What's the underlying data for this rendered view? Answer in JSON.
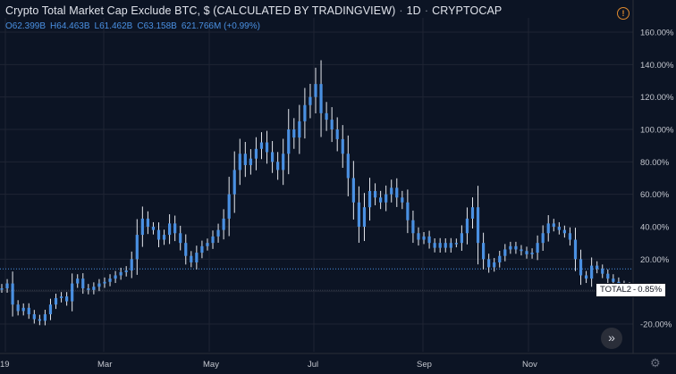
{
  "header": {
    "title": "Crypto Total Market Cap Exclude BTC, $ (CALCULATED BY TRADINGVIEW)",
    "interval": "1D",
    "exchange": "CRYPTOCAP",
    "separator": "·"
  },
  "ohlc": {
    "open": "O62.399B",
    "high": "H64.463B",
    "low": "L61.462B",
    "close": "C63.158B",
    "change": "621.766M (+0.99%)"
  },
  "price_tag": {
    "symbol": "TOTAL2",
    "separator": "-",
    "value": "0.85%"
  },
  "colors": {
    "background": "#0c1424",
    "grid": "#1e2433",
    "candle": "#4a90e2",
    "wick": "#e6e9ef",
    "ref_line": "#4a90e2"
  },
  "icons": {
    "alert": "alert-clock-icon",
    "scroll": "double-chevron-right-icon",
    "settings": "gear-icon"
  },
  "chart_data": {
    "type": "line",
    "title": "Crypto Total Market Cap Exclude BTC, $ (CALCULATED BY TRADINGVIEW)",
    "x_labels": [
      "19",
      "Mar",
      "May",
      "Jul",
      "Sep",
      "Nov"
    ],
    "y_ticks": [
      "160.00%",
      "140.00%",
      "120.00%",
      "100.00%",
      "80.00%",
      "60.00%",
      "40.00%",
      "20.00%",
      "0.00%",
      "-20.00%"
    ],
    "y_values": [
      160,
      140,
      120,
      100,
      80,
      60,
      40,
      20,
      0,
      -20
    ],
    "ylim": [
      -26,
      168
    ],
    "reference_level": 14,
    "current_value": 0.85,
    "scale": "percent",
    "grid": true,
    "series": [
      {
        "values": [
          2,
          5,
          -8,
          -12,
          -10,
          -14,
          -17,
          -18,
          -14,
          -8,
          -4,
          -3,
          -6,
          5,
          8,
          2,
          1,
          3,
          5,
          6,
          8,
          10,
          12,
          13,
          20,
          35,
          45,
          40,
          38,
          32,
          35,
          42,
          36,
          30,
          22,
          18,
          24,
          28,
          30,
          34,
          38,
          45,
          60,
          75,
          85,
          78,
          82,
          88,
          92,
          86,
          80,
          75,
          85,
          100,
          95,
          105,
          115,
          120,
          128,
          110,
          106,
          100,
          94,
          85,
          70,
          55,
          40,
          52,
          62,
          58,
          55,
          60,
          64,
          58,
          55,
          44,
          36,
          32,
          34,
          30,
          27,
          30,
          27,
          30,
          30,
          36,
          45,
          52,
          30,
          20,
          15,
          18,
          22,
          26,
          28,
          26,
          25,
          23,
          24,
          30,
          36,
          42,
          40,
          38,
          36,
          32,
          20,
          10,
          8,
          16,
          14,
          11,
          8,
          6,
          4,
          3,
          0.85
        ]
      }
    ]
  }
}
